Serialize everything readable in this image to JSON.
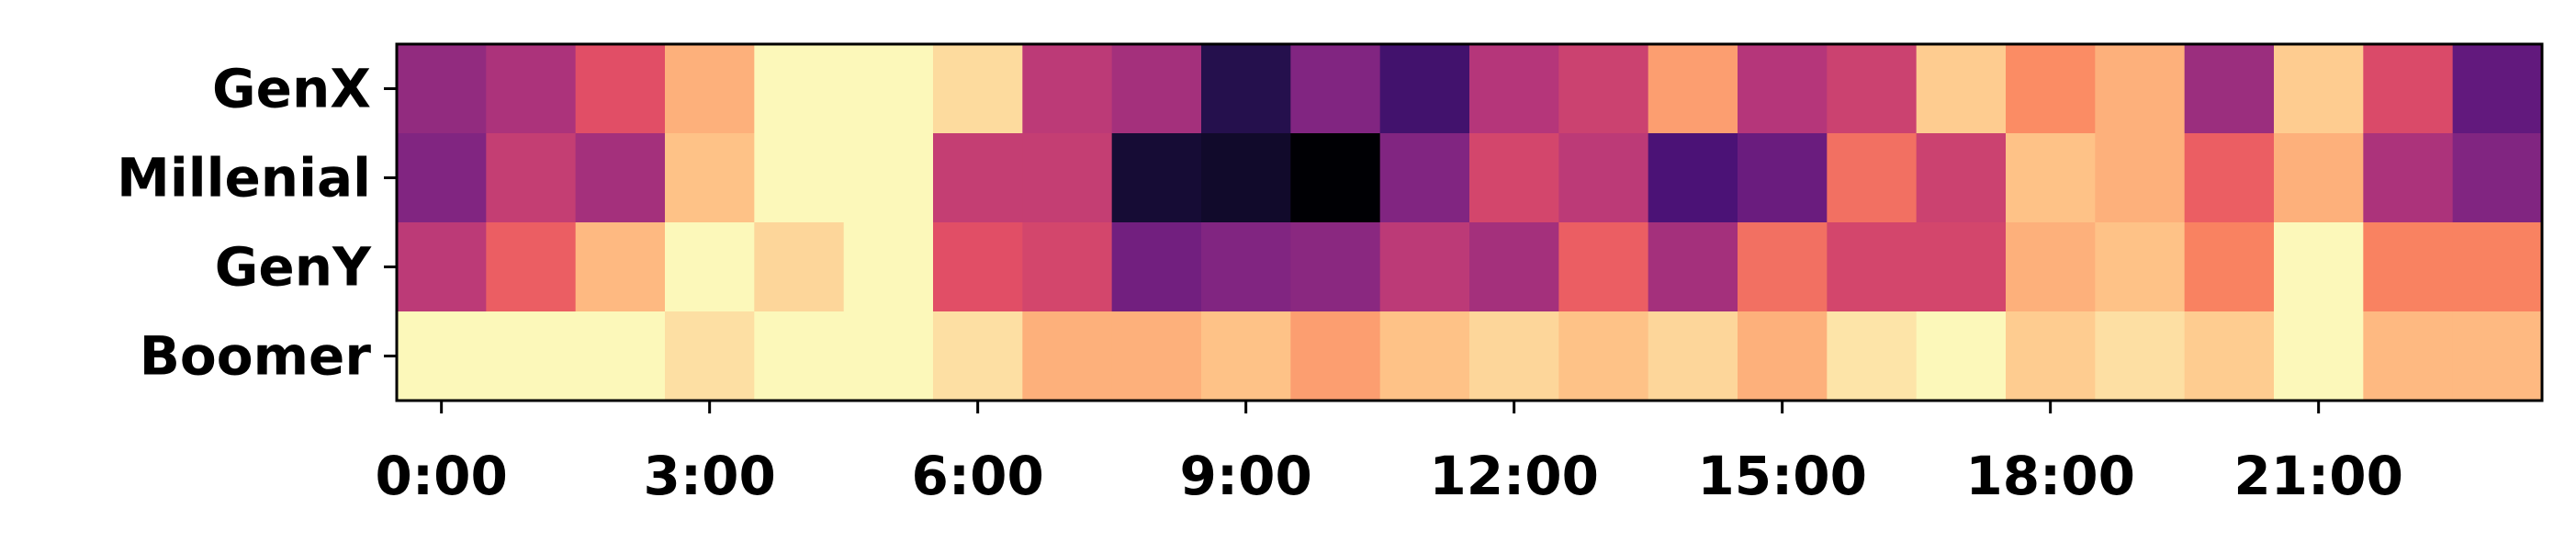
{
  "chart_data": {
    "type": "heatmap",
    "title": "",
    "xlabel": "",
    "ylabel": "",
    "colormap": "magma",
    "value_range": [
      0,
      1
    ],
    "grid": false,
    "legend": "none",
    "rows": [
      "GenX",
      "Millenial",
      "GenY",
      "Boomer"
    ],
    "columns": [
      "0:00",
      "1:00",
      "2:00",
      "3:00",
      "4:00",
      "5:00",
      "6:00",
      "7:00",
      "8:00",
      "9:00",
      "10:00",
      "11:00",
      "12:00",
      "13:00",
      "14:00",
      "15:00",
      "16:00",
      "17:00",
      "18:00",
      "19:00",
      "20:00",
      "21:00",
      "22:00",
      "23:00"
    ],
    "xticks": [
      {
        "col": 0,
        "label": "0:00"
      },
      {
        "col": 3,
        "label": "3:00"
      },
      {
        "col": 6,
        "label": "6:00"
      },
      {
        "col": 9,
        "label": "9:00"
      },
      {
        "col": 12,
        "label": "12:00"
      },
      {
        "col": 15,
        "label": "15:00"
      },
      {
        "col": 18,
        "label": "18:00"
      },
      {
        "col": 21,
        "label": "21:00"
      }
    ],
    "values": [
      [
        0.42,
        0.48,
        0.62,
        0.84,
        0.99,
        0.99,
        0.93,
        0.52,
        0.46,
        0.15,
        0.38,
        0.22,
        0.5,
        0.56,
        0.8,
        0.5,
        0.56,
        0.9,
        0.76,
        0.84,
        0.44,
        0.9,
        0.6,
        0.3
      ],
      [
        0.38,
        0.54,
        0.46,
        0.88,
        0.99,
        0.99,
        0.54,
        0.54,
        0.1,
        0.08,
        0.0,
        0.38,
        0.58,
        0.52,
        0.24,
        0.32,
        0.7,
        0.56,
        0.88,
        0.84,
        0.66,
        0.84,
        0.48,
        0.38
      ],
      [
        0.52,
        0.66,
        0.86,
        0.99,
        0.92,
        0.99,
        0.62,
        0.58,
        0.34,
        0.38,
        0.4,
        0.52,
        0.46,
        0.66,
        0.46,
        0.7,
        0.58,
        0.58,
        0.84,
        0.88,
        0.74,
        0.99,
        0.74,
        0.74
      ],
      [
        0.99,
        0.99,
        0.99,
        0.94,
        0.99,
        0.99,
        0.94,
        0.84,
        0.84,
        0.88,
        0.8,
        0.88,
        0.92,
        0.88,
        0.92,
        0.84,
        0.95,
        0.99,
        0.9,
        0.94,
        0.9,
        0.99,
        0.86,
        0.86
      ]
    ]
  }
}
